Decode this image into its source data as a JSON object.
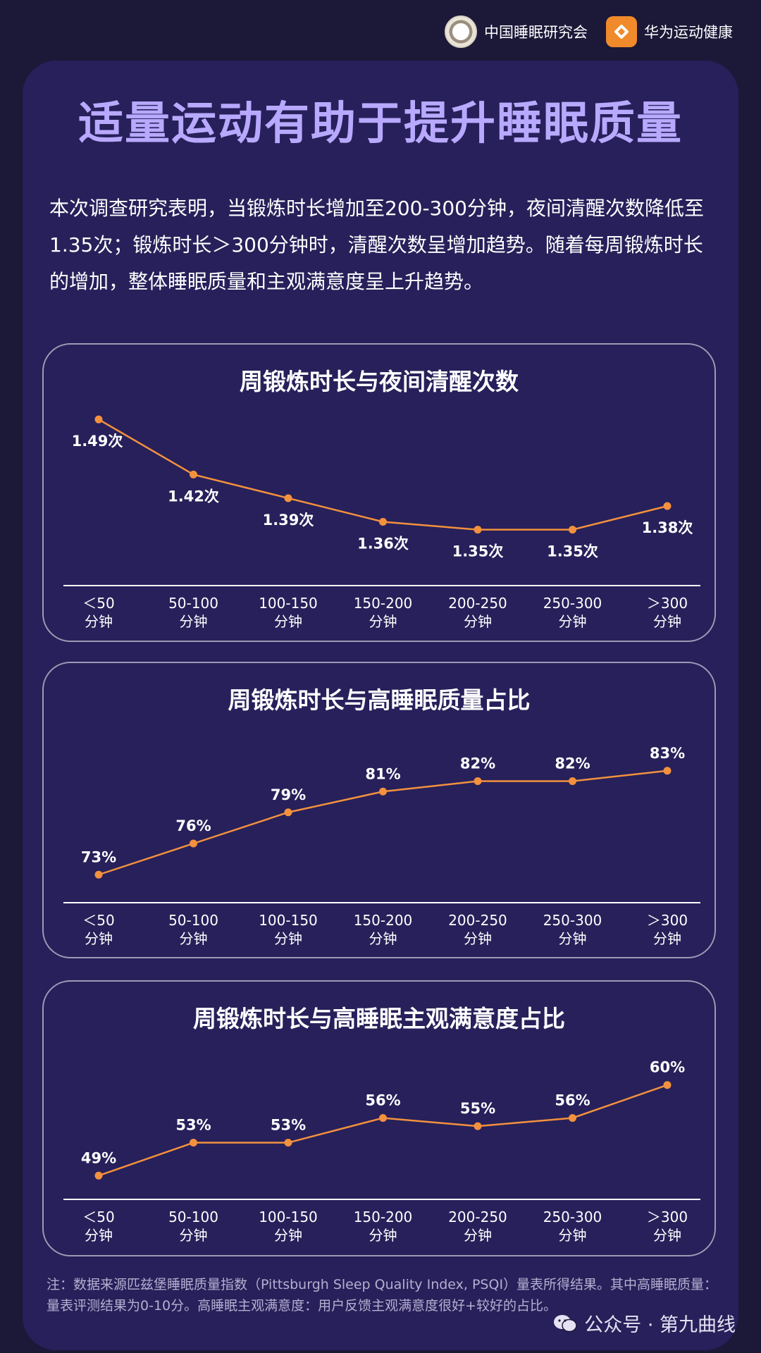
{
  "header": {
    "logo1_text": "中国睡眠研究会",
    "logo2_text": "华为运动健康"
  },
  "title": "适量运动有助于提升睡眠质量",
  "intro": "本次调查研究表明，当锻炼时长增加至200-300分钟，夜间清醒次数降低至1.35次；锻炼时长＞300分钟时，清醒次数呈增加趋势。随着每周锻炼时长的增加，整体睡眠质量和主观满意度呈上升趋势。",
  "colors": {
    "background": "#1c1838",
    "panel": "#27205a",
    "title": "#b8a9ff",
    "line": "#f3913e",
    "text": "#ffffff"
  },
  "chart_data": [
    {
      "type": "line",
      "title": "周锻炼时长与夜间清醒次数",
      "categories": [
        "＜50|分钟",
        "50-100|分钟",
        "100-150|分钟",
        "150-200|分钟",
        "200-250|分钟",
        "250-300|分钟",
        "＞300|分钟"
      ],
      "values": [
        1.49,
        1.42,
        1.39,
        1.36,
        1.35,
        1.35,
        1.38
      ],
      "labels": [
        "1.49次",
        "1.42次",
        "1.39次",
        "1.36次",
        "1.35次",
        "1.35次",
        "1.38次"
      ],
      "label_position": "below",
      "ylim": [
        1.33,
        1.5
      ],
      "grid": false
    },
    {
      "type": "line",
      "title": "周锻炼时长与高睡眠质量占比",
      "categories": [
        "＜50|分钟",
        "50-100|分钟",
        "100-150|分钟",
        "150-200|分钟",
        "200-250|分钟",
        "250-300|分钟",
        "＞300|分钟"
      ],
      "values": [
        73,
        76,
        79,
        81,
        82,
        82,
        83
      ],
      "labels": [
        "73%",
        "76%",
        "79%",
        "81%",
        "82%",
        "82%",
        "83%"
      ],
      "label_position": "above",
      "ylim": [
        72,
        84
      ],
      "grid": false
    },
    {
      "type": "line",
      "title": "周锻炼时长与高睡眠主观满意度占比",
      "categories": [
        "＜50|分钟",
        "50-100|分钟",
        "100-150|分钟",
        "150-200|分钟",
        "200-250|分钟",
        "250-300|分钟",
        "＞300|分钟"
      ],
      "values": [
        49,
        53,
        53,
        56,
        55,
        56,
        60
      ],
      "labels": [
        "49%",
        "53%",
        "53%",
        "56%",
        "55%",
        "56%",
        "60%"
      ],
      "label_position": "above",
      "ylim": [
        48,
        61
      ],
      "grid": false
    }
  ],
  "footnote": "注：数据来源匹兹堡睡眠质量指数（Pittsburgh Sleep Quality Index, PSQI）量表所得结果。其中高睡眠质量：量表评测结果为0-10分。高睡眠主观满意度：用户反馈主观满意度很好+较好的占比。",
  "watermark": "公众号 · 第九曲线"
}
